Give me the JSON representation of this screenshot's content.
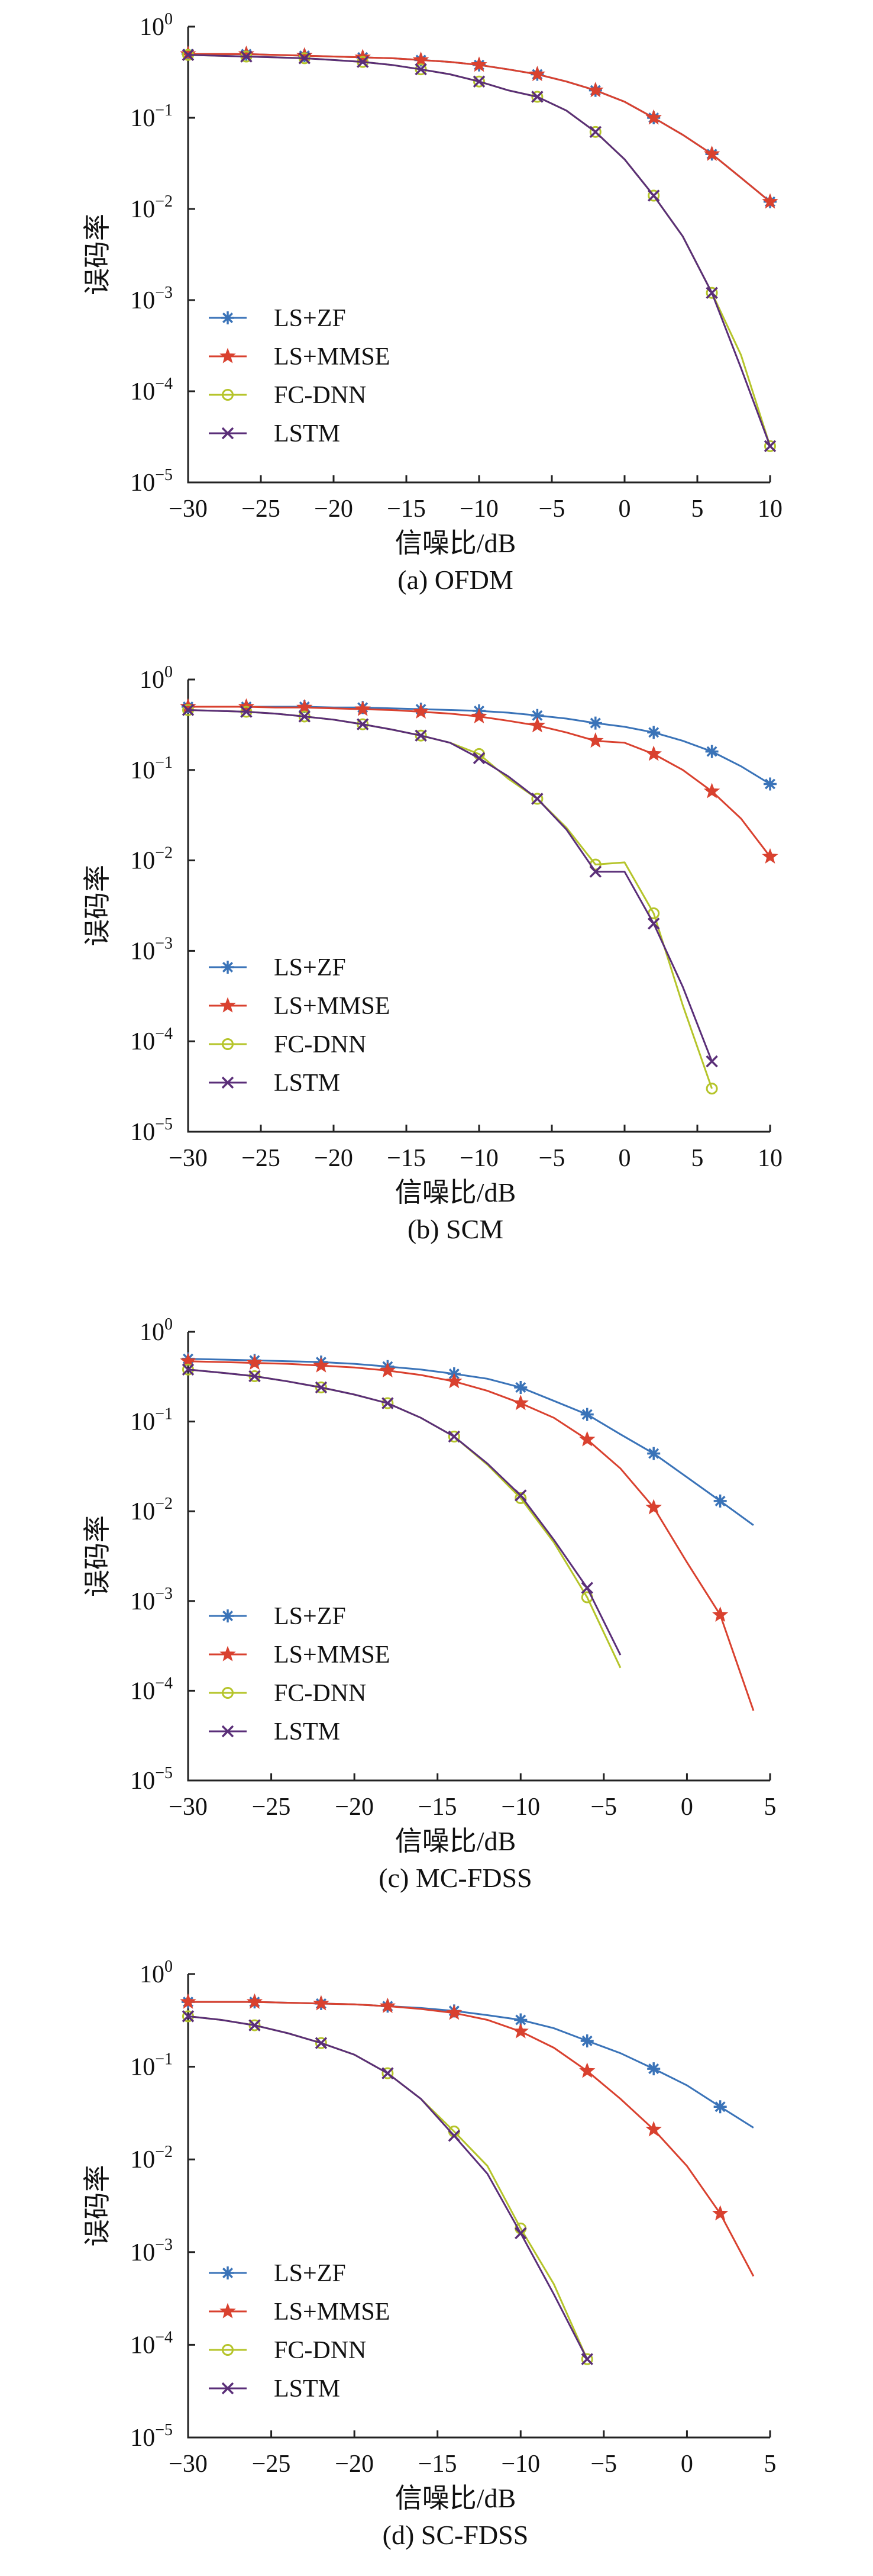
{
  "colors": {
    "LS+ZF": "#3a73b8",
    "LS+MMSE": "#d9412f",
    "FC-DNN": "#b5c42a",
    "LSTM": "#5a2e78"
  },
  "chart_data": [
    {
      "type": "line",
      "title": "(a) OFDM",
      "xlabel": "信噪比/dB",
      "ylabel": "误码率",
      "y_scale": "log",
      "xlim": [
        -30,
        10
      ],
      "ylim": [
        1e-05,
        1
      ],
      "xticks": [
        "−30",
        "−25",
        "−20",
        "−15",
        "−10",
        "−5",
        "0",
        "5",
        "10"
      ],
      "legend_position": "bottom-left",
      "series": [
        {
          "name": "LS+ZF",
          "marker": "asterisk",
          "x": [
            -30,
            -28,
            -26,
            -24,
            -22,
            -20,
            -18,
            -16,
            -14,
            -12,
            -10,
            -8,
            -6,
            -4,
            -2,
            0,
            2,
            4,
            6,
            8,
            10
          ],
          "y": [
            0.5,
            0.5,
            0.5,
            0.49,
            0.48,
            0.47,
            0.46,
            0.45,
            0.43,
            0.41,
            0.38,
            0.34,
            0.3,
            0.25,
            0.2,
            0.15,
            0.1,
            0.065,
            0.04,
            0.022,
            0.012
          ]
        },
        {
          "name": "LS+MMSE",
          "marker": "star",
          "x": [
            -30,
            -28,
            -26,
            -24,
            -22,
            -20,
            -18,
            -16,
            -14,
            -12,
            -10,
            -8,
            -6,
            -4,
            -2,
            0,
            2,
            4,
            6,
            8,
            10
          ],
          "y": [
            0.5,
            0.5,
            0.5,
            0.49,
            0.48,
            0.47,
            0.46,
            0.45,
            0.43,
            0.41,
            0.38,
            0.34,
            0.3,
            0.25,
            0.2,
            0.15,
            0.1,
            0.065,
            0.04,
            0.022,
            0.012
          ]
        },
        {
          "name": "FC-DNN",
          "marker": "circle",
          "x": [
            -30,
            -28,
            -26,
            -24,
            -22,
            -20,
            -18,
            -16,
            -14,
            -12,
            -10,
            -8,
            -6,
            -4,
            -2,
            0,
            2,
            4,
            6,
            8,
            10
          ],
          "y": [
            0.49,
            0.48,
            0.47,
            0.46,
            0.45,
            0.43,
            0.41,
            0.38,
            0.34,
            0.3,
            0.25,
            0.2,
            0.17,
            0.12,
            0.07,
            0.035,
            0.014,
            0.005,
            0.0012,
            0.00025,
            2.5e-05
          ]
        },
        {
          "name": "LSTM",
          "marker": "x",
          "x": [
            -30,
            -28,
            -26,
            -24,
            -22,
            -20,
            -18,
            -16,
            -14,
            -12,
            -10,
            -8,
            -6,
            -4,
            -2,
            0,
            2,
            4,
            6,
            8,
            10
          ],
          "y": [
            0.49,
            0.48,
            0.47,
            0.46,
            0.45,
            0.43,
            0.41,
            0.38,
            0.34,
            0.3,
            0.25,
            0.2,
            0.17,
            0.12,
            0.07,
            0.035,
            0.014,
            0.005,
            0.0012,
            0.00018,
            2.5e-05
          ]
        }
      ]
    },
    {
      "type": "line",
      "title": "(b) SCM",
      "xlabel": "信噪比/dB",
      "ylabel": "误码率",
      "y_scale": "log",
      "xlim": [
        -30,
        10
      ],
      "ylim": [
        1e-05,
        1
      ],
      "xticks": [
        "−30",
        "−25",
        "−20",
        "−15",
        "−10",
        "−5",
        "0",
        "5",
        "10"
      ],
      "legend_position": "bottom-left",
      "series": [
        {
          "name": "LS+ZF",
          "marker": "asterisk",
          "x": [
            -30,
            -28,
            -26,
            -24,
            -22,
            -20,
            -18,
            -16,
            -14,
            -12,
            -10,
            -8,
            -6,
            -4,
            -2,
            0,
            2,
            4,
            6,
            8,
            10
          ],
          "y": [
            0.5,
            0.5,
            0.5,
            0.5,
            0.5,
            0.49,
            0.49,
            0.48,
            0.47,
            0.46,
            0.45,
            0.43,
            0.4,
            0.37,
            0.33,
            0.3,
            0.26,
            0.21,
            0.16,
            0.11,
            0.07
          ]
        },
        {
          "name": "LS+MMSE",
          "marker": "star",
          "x": [
            -30,
            -28,
            -26,
            -24,
            -22,
            -20,
            -18,
            -16,
            -14,
            -12,
            -10,
            -8,
            -6,
            -4,
            -2,
            0,
            2,
            4,
            6,
            8,
            10
          ],
          "y": [
            0.5,
            0.5,
            0.5,
            0.49,
            0.49,
            0.48,
            0.47,
            0.46,
            0.44,
            0.42,
            0.39,
            0.35,
            0.31,
            0.26,
            0.21,
            0.2,
            0.15,
            0.1,
            0.058,
            0.029,
            0.011
          ]
        },
        {
          "name": "FC-DNN",
          "marker": "circle",
          "x": [
            -30,
            -28,
            -26,
            -24,
            -22,
            -20,
            -18,
            -16,
            -14,
            -12,
            -10,
            -8,
            -6,
            -4,
            -2,
            0,
            2,
            4,
            6
          ],
          "y": [
            0.46,
            0.45,
            0.44,
            0.42,
            0.39,
            0.36,
            0.32,
            0.28,
            0.24,
            0.2,
            0.15,
            0.08,
            0.048,
            0.023,
            0.009,
            0.0095,
            0.0026,
            0.00025,
            3e-05
          ]
        },
        {
          "name": "LSTM",
          "marker": "x",
          "x": [
            -30,
            -28,
            -26,
            -24,
            -22,
            -20,
            -18,
            -16,
            -14,
            -12,
            -10,
            -8,
            -6,
            -4,
            -2,
            0,
            2,
            4,
            6
          ],
          "y": [
            0.46,
            0.45,
            0.44,
            0.42,
            0.39,
            0.36,
            0.32,
            0.28,
            0.24,
            0.2,
            0.135,
            0.085,
            0.048,
            0.022,
            0.0075,
            0.0075,
            0.002,
            0.0004,
            6e-05
          ]
        }
      ]
    },
    {
      "type": "line",
      "title": "(c) MC-FDSS",
      "xlabel": "信噪比/dB",
      "ylabel": "误码率",
      "y_scale": "log",
      "xlim": [
        -30,
        5
      ],
      "ylim": [
        1e-05,
        1
      ],
      "xticks": [
        "−30",
        "−25",
        "−20",
        "−15",
        "−10",
        "−5",
        "0",
        "5"
      ],
      "legend_position": "bottom-left",
      "series": [
        {
          "name": "LS+ZF",
          "marker": "asterisk",
          "x": [
            -30,
            -28,
            -26,
            -24,
            -22,
            -20,
            -18,
            -16,
            -14,
            -12,
            -10,
            -8,
            -6,
            -4,
            -2,
            0,
            2,
            4
          ],
          "y": [
            0.5,
            0.49,
            0.48,
            0.47,
            0.46,
            0.44,
            0.41,
            0.38,
            0.34,
            0.3,
            0.24,
            0.17,
            0.12,
            0.072,
            0.044,
            0.024,
            0.013,
            0.007
          ]
        },
        {
          "name": "LS+MMSE",
          "marker": "star",
          "x": [
            -30,
            -28,
            -26,
            -24,
            -22,
            -20,
            -18,
            -16,
            -14,
            -12,
            -10,
            -8,
            -6,
            -4,
            -2,
            0,
            2,
            4
          ],
          "y": [
            0.47,
            0.46,
            0.45,
            0.44,
            0.42,
            0.4,
            0.37,
            0.33,
            0.28,
            0.22,
            0.16,
            0.11,
            0.063,
            0.03,
            0.011,
            0.0027,
            0.0007,
            6e-05
          ]
        },
        {
          "name": "FC-DNN",
          "marker": "circle",
          "x": [
            -30,
            -28,
            -26,
            -24,
            -22,
            -20,
            -18,
            -16,
            -14,
            -12,
            -10,
            -8,
            -6,
            -4
          ],
          "y": [
            0.38,
            0.35,
            0.32,
            0.28,
            0.24,
            0.2,
            0.16,
            0.11,
            0.068,
            0.033,
            0.014,
            0.0045,
            0.0011,
            0.00018
          ]
        },
        {
          "name": "LSTM",
          "marker": "x",
          "x": [
            -30,
            -28,
            -26,
            -24,
            -22,
            -20,
            -18,
            -16,
            -14,
            -12,
            -10,
            -8,
            -6,
            -4
          ],
          "y": [
            0.38,
            0.35,
            0.32,
            0.28,
            0.24,
            0.2,
            0.16,
            0.11,
            0.068,
            0.034,
            0.015,
            0.0048,
            0.0014,
            0.00025
          ]
        }
      ]
    },
    {
      "type": "line",
      "title": "(d) SC-FDSS",
      "xlabel": "信噪比/dB",
      "ylabel": "误码率",
      "y_scale": "log",
      "xlim": [
        -30,
        5
      ],
      "ylim": [
        1e-05,
        1
      ],
      "xticks": [
        "−30",
        "−25",
        "−20",
        "−15",
        "−10",
        "−5",
        "0",
        "5"
      ],
      "legend_position": "bottom-left",
      "series": [
        {
          "name": "LS+ZF",
          "marker": "asterisk",
          "x": [
            -30,
            -28,
            -26,
            -24,
            -22,
            -20,
            -18,
            -16,
            -14,
            -12,
            -10,
            -8,
            -6,
            -4,
            -2,
            0,
            2,
            4
          ],
          "y": [
            0.5,
            0.5,
            0.5,
            0.49,
            0.48,
            0.47,
            0.45,
            0.43,
            0.4,
            0.36,
            0.32,
            0.26,
            0.19,
            0.14,
            0.095,
            0.063,
            0.037,
            0.022
          ]
        },
        {
          "name": "LS+MMSE",
          "marker": "star",
          "x": [
            -30,
            -28,
            -26,
            -24,
            -22,
            -20,
            -18,
            -16,
            -14,
            -12,
            -10,
            -8,
            -6,
            -4,
            -2,
            0,
            2,
            4
          ],
          "y": [
            0.5,
            0.5,
            0.5,
            0.49,
            0.48,
            0.47,
            0.45,
            0.42,
            0.38,
            0.32,
            0.24,
            0.16,
            0.09,
            0.045,
            0.021,
            0.0085,
            0.0026,
            0.00055
          ]
        },
        {
          "name": "FC-DNN",
          "marker": "circle",
          "x": [
            -30,
            -28,
            -26,
            -24,
            -22,
            -20,
            -18,
            -16,
            -14,
            -12,
            -10,
            -8,
            -6
          ],
          "y": [
            0.35,
            0.32,
            0.28,
            0.23,
            0.18,
            0.135,
            0.085,
            0.045,
            0.02,
            0.0085,
            0.0018,
            0.00045,
            7e-05
          ]
        },
        {
          "name": "LSTM",
          "marker": "x",
          "x": [
            -30,
            -28,
            -26,
            -24,
            -22,
            -20,
            -18,
            -16,
            -14,
            -12,
            -10,
            -8,
            -6
          ],
          "y": [
            0.35,
            0.32,
            0.28,
            0.23,
            0.18,
            0.135,
            0.085,
            0.045,
            0.018,
            0.007,
            0.0016,
            0.00035,
            7e-05
          ]
        }
      ]
    }
  ]
}
